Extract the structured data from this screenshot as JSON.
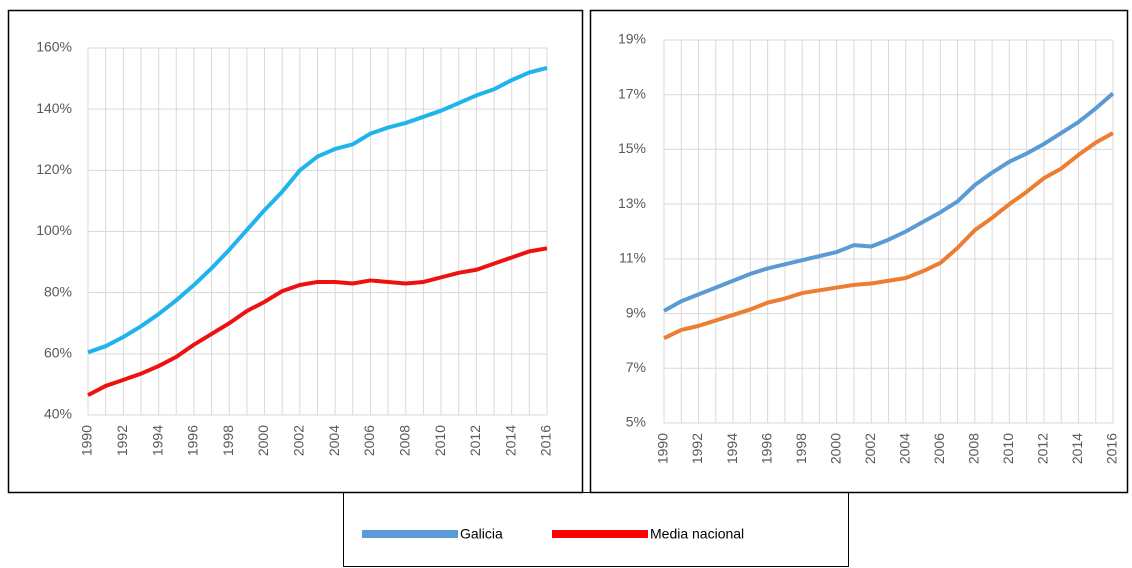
{
  "chart_data": [
    {
      "type": "line",
      "categories": [
        "1990",
        null,
        "1992",
        null,
        "1994",
        null,
        "1996",
        null,
        "1998",
        null,
        "2000",
        null,
        "2002",
        null,
        "2004",
        null,
        "2006",
        null,
        "2008",
        null,
        "2010",
        null,
        "2012",
        null,
        "2014",
        null,
        "2016"
      ],
      "series": [
        {
          "color": "#1fb4ec",
          "values": [
            60.5,
            62.5,
            65.5,
            69,
            73,
            77.5,
            82.5,
            88,
            94,
            100.5,
            107,
            113,
            120,
            124.5,
            127,
            128.5,
            132,
            134,
            135.5,
            137.5,
            139.5,
            142,
            144.5,
            146.5,
            149.5,
            152,
            153.5
          ]
        },
        {
          "color": "#ee1111",
          "values": [
            46.5,
            49.5,
            51.5,
            53.5,
            56,
            59,
            63,
            66.5,
            70,
            74,
            77,
            80.5,
            82.5,
            83.5,
            83.5,
            83,
            84,
            83.5,
            83,
            83.5,
            85,
            86.5,
            87.5,
            89.5,
            91.5,
            93.5,
            94.5
          ]
        }
      ],
      "ylim": [
        40,
        160
      ],
      "yticks": [
        {
          "value": 40,
          "label": "40%"
        },
        {
          "value": 60,
          "label": "60%"
        },
        {
          "value": 80,
          "label": "80%"
        },
        {
          "value": 100,
          "label": "100%"
        },
        {
          "value": 120,
          "label": "120%"
        },
        {
          "value": 140,
          "label": "140%"
        },
        {
          "value": 160,
          "label": "160%"
        }
      ],
      "grid": true
    },
    {
      "type": "line",
      "categories": [
        "1990",
        null,
        "1992",
        null,
        "1994",
        null,
        "1996",
        null,
        "1998",
        null,
        "2000",
        null,
        "2002",
        null,
        "2004",
        null,
        "2006",
        null,
        "2008",
        null,
        "2010",
        null,
        "2012",
        null,
        "2014",
        null,
        "2016"
      ],
      "series": [
        {
          "color": "#5b9bd5",
          "values": [
            9.1,
            9.45,
            9.7,
            9.95,
            10.2,
            10.45,
            10.65,
            10.8,
            10.95,
            11.1,
            11.25,
            11.5,
            11.45,
            11.7,
            12.0,
            12.35,
            12.7,
            13.1,
            13.7,
            14.15,
            14.55,
            14.85,
            15.2,
            15.6,
            16.0,
            16.5,
            17.05
          ]
        },
        {
          "color": "#ed7d31",
          "values": [
            8.1,
            8.4,
            8.55,
            8.75,
            8.95,
            9.15,
            9.4,
            9.55,
            9.75,
            9.85,
            9.95,
            10.05,
            10.1,
            10.2,
            10.3,
            10.55,
            10.85,
            11.4,
            12.05,
            12.5,
            13.0,
            13.45,
            13.95,
            14.3,
            14.8,
            15.25,
            15.6
          ]
        }
      ],
      "ylim": [
        5,
        19
      ],
      "yticks": [
        {
          "value": 5,
          "label": "5%"
        },
        {
          "value": 7,
          "label": "7%"
        },
        {
          "value": 9,
          "label": "9%"
        },
        {
          "value": 11,
          "label": "11%"
        },
        {
          "value": 13,
          "label": "13%"
        },
        {
          "value": 15,
          "label": "15%"
        },
        {
          "value": 17,
          "label": "17%"
        },
        {
          "value": 19,
          "label": "19%"
        }
      ],
      "grid": true
    }
  ],
  "legend": {
    "entries": [
      {
        "name": "Galicia",
        "color": "#5b9bd5"
      },
      {
        "name": "Media nacional",
        "color": "#ff0000"
      }
    ]
  }
}
